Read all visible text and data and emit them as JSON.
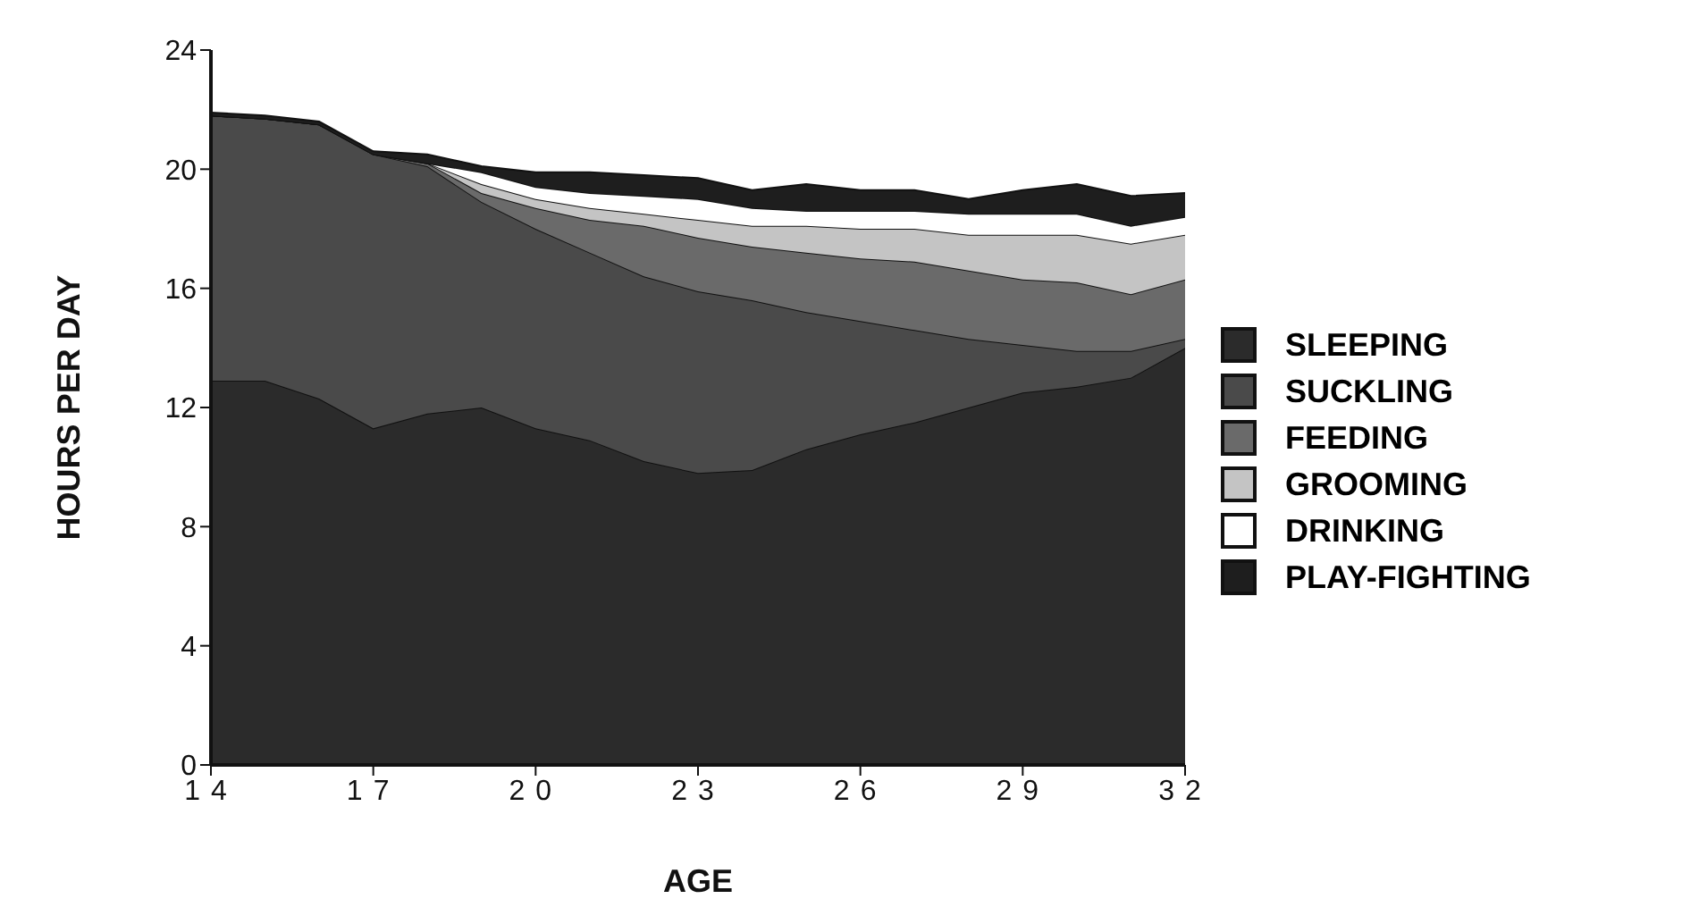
{
  "chart_data": {
    "type": "area",
    "stacked": true,
    "xlabel": "AGE",
    "ylabel": "HOURS PER DAY",
    "x": [
      14,
      15,
      16,
      17,
      18,
      19,
      20,
      21,
      22,
      23,
      24,
      25,
      26,
      27,
      28,
      29,
      30,
      31,
      32
    ],
    "series": [
      {
        "name": "SLEEPING",
        "color": "#2b2b2b",
        "values": [
          12.9,
          12.9,
          12.3,
          11.3,
          11.8,
          12.0,
          11.3,
          10.9,
          10.2,
          9.8,
          9.9,
          10.6,
          11.1,
          11.5,
          12.0,
          12.5,
          12.7,
          13.0,
          14.0
        ]
      },
      {
        "name": "SUCKLING",
        "color": "#4a4a4a",
        "values": [
          8.9,
          8.8,
          9.2,
          9.2,
          8.3,
          6.9,
          6.7,
          6.3,
          6.2,
          6.1,
          5.7,
          4.6,
          3.8,
          3.1,
          2.3,
          1.6,
          1.2,
          0.9,
          0.3
        ]
      },
      {
        "name": "FEEDING",
        "color": "#6a6a6a",
        "values": [
          0,
          0,
          0,
          0,
          0.1,
          0.3,
          0.7,
          1.1,
          1.7,
          1.8,
          1.8,
          2.0,
          2.1,
          2.3,
          2.3,
          2.2,
          2.3,
          1.9,
          2.0
        ]
      },
      {
        "name": "GROOMING",
        "color": "#c4c4c4",
        "values": [
          0,
          0,
          0,
          0,
          0,
          0.3,
          0.3,
          0.4,
          0.4,
          0.6,
          0.7,
          0.9,
          1.0,
          1.1,
          1.2,
          1.5,
          1.6,
          1.7,
          1.5
        ]
      },
      {
        "name": "DRINKING",
        "color": "#ffffff",
        "values": [
          0,
          0,
          0,
          0,
          0,
          0.4,
          0.4,
          0.5,
          0.6,
          0.7,
          0.6,
          0.5,
          0.6,
          0.6,
          0.7,
          0.7,
          0.7,
          0.6,
          0.6
        ]
      },
      {
        "name": "PLAY-FIGHTING",
        "color": "#1e1e1e",
        "values": [
          0.1,
          0.1,
          0.1,
          0.1,
          0.3,
          0.2,
          0.5,
          0.7,
          0.7,
          0.7,
          0.6,
          0.9,
          0.7,
          0.7,
          0.5,
          0.8,
          1.0,
          1.0,
          0.8
        ]
      }
    ],
    "xlim": [
      14,
      32
    ],
    "xticks": [
      14,
      17,
      20,
      23,
      26,
      29,
      32
    ],
    "ylim": [
      0,
      24
    ],
    "yticks": [
      0,
      4,
      8,
      12,
      16,
      20,
      24
    ],
    "grid": false,
    "legend": "right"
  }
}
